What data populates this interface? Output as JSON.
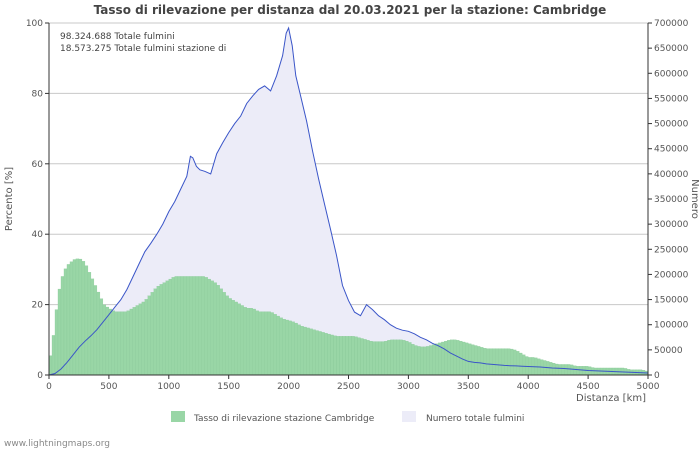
{
  "chart_data": {
    "type": "bar+area",
    "title": "Tasso di rilevazione per distanza dal 20.03.2021 per la stazione: Cambridge",
    "xlabel": "Distanza   [km]",
    "ylabel_left": "Percento   [%]",
    "ylabel_right": "Numero",
    "xlim": [
      0,
      5000
    ],
    "ylim_left": [
      0,
      100
    ],
    "ylim_right": [
      0,
      700000
    ],
    "x_ticks": [
      "0",
      "500",
      "1000",
      "1500",
      "2000",
      "2500",
      "3000",
      "3500",
      "4000",
      "4500",
      "5000"
    ],
    "y_left_ticks": [
      "0",
      "20",
      "40",
      "60",
      "80",
      "100"
    ],
    "y_right_ticks": [
      "0",
      "50000",
      "100000",
      "150000",
      "200000",
      "250000",
      "300000",
      "350000",
      "400000",
      "450000",
      "500000",
      "550000",
      "600000",
      "650000",
      "700000"
    ],
    "annotations": [
      "98.324.688 Totale fulmini",
      "18.573.275 Totale fulmini stazione di"
    ],
    "legend": [
      "Tasso di rilevazione stazione Cambridge",
      "Numero totale fulmini"
    ],
    "bin_width_km": 25,
    "series": [
      {
        "name": "Tasso di rilevazione stazione Cambridge",
        "axis": "left",
        "kind": "bar",
        "points": [
          [
            0,
            3
          ],
          [
            30,
            9
          ],
          [
            60,
            18
          ],
          [
            90,
            25
          ],
          [
            120,
            29
          ],
          [
            150,
            31
          ],
          [
            180,
            32
          ],
          [
            220,
            33
          ],
          [
            260,
            33
          ],
          [
            300,
            32
          ],
          [
            340,
            29
          ],
          [
            380,
            26
          ],
          [
            420,
            23
          ],
          [
            460,
            20
          ],
          [
            500,
            19
          ],
          [
            550,
            18
          ],
          [
            600,
            18
          ],
          [
            650,
            18
          ],
          [
            700,
            19
          ],
          [
            750,
            20
          ],
          [
            800,
            21
          ],
          [
            850,
            23
          ],
          [
            900,
            25
          ],
          [
            950,
            26
          ],
          [
            1000,
            27
          ],
          [
            1050,
            28
          ],
          [
            1100,
            28
          ],
          [
            1150,
            28
          ],
          [
            1200,
            28
          ],
          [
            1250,
            28
          ],
          [
            1300,
            28
          ],
          [
            1350,
            27
          ],
          [
            1400,
            26
          ],
          [
            1450,
            24
          ],
          [
            1500,
            22
          ],
          [
            1550,
            21
          ],
          [
            1600,
            20
          ],
          [
            1650,
            19
          ],
          [
            1700,
            19
          ],
          [
            1750,
            18
          ],
          [
            1800,
            18
          ],
          [
            1850,
            18
          ],
          [
            1900,
            17
          ],
          [
            1950,
            16
          ],
          [
            2000,
            15.5
          ],
          [
            2050,
            15
          ],
          [
            2100,
            14
          ],
          [
            2150,
            13.5
          ],
          [
            2200,
            13
          ],
          [
            2250,
            12.5
          ],
          [
            2300,
            12
          ],
          [
            2350,
            11.5
          ],
          [
            2400,
            11
          ],
          [
            2450,
            11
          ],
          [
            2500,
            11
          ],
          [
            2550,
            11
          ],
          [
            2600,
            10.5
          ],
          [
            2650,
            10
          ],
          [
            2700,
            9.5
          ],
          [
            2750,
            9.5
          ],
          [
            2800,
            9.5
          ],
          [
            2850,
            10
          ],
          [
            2900,
            10
          ],
          [
            2950,
            10
          ],
          [
            3000,
            9.5
          ],
          [
            3050,
            8.5
          ],
          [
            3100,
            8
          ],
          [
            3150,
            8
          ],
          [
            3200,
            8.5
          ],
          [
            3250,
            9
          ],
          [
            3300,
            9.5
          ],
          [
            3350,
            10
          ],
          [
            3400,
            10
          ],
          [
            3450,
            9.5
          ],
          [
            3500,
            9
          ],
          [
            3550,
            8.5
          ],
          [
            3600,
            8
          ],
          [
            3650,
            7.5
          ],
          [
            3700,
            7.5
          ],
          [
            3750,
            7.5
          ],
          [
            3800,
            7.5
          ],
          [
            3850,
            7.5
          ],
          [
            3900,
            7
          ],
          [
            3950,
            6
          ],
          [
            4000,
            5
          ],
          [
            4050,
            5
          ],
          [
            4100,
            4.5
          ],
          [
            4150,
            4
          ],
          [
            4200,
            3.5
          ],
          [
            4250,
            3
          ],
          [
            4300,
            3
          ],
          [
            4350,
            3
          ],
          [
            4400,
            2.5
          ],
          [
            4450,
            2.5
          ],
          [
            4500,
            2.5
          ],
          [
            4550,
            2
          ],
          [
            4600,
            2
          ],
          [
            4650,
            2
          ],
          [
            4700,
            2
          ],
          [
            4750,
            2
          ],
          [
            4800,
            2
          ],
          [
            4850,
            1.5
          ],
          [
            4900,
            1.5
          ],
          [
            4950,
            1.5
          ],
          [
            5000,
            1
          ]
        ]
      },
      {
        "name": "Numero totale fulmini",
        "axis": "right",
        "kind": "area",
        "points": [
          [
            0,
            0
          ],
          [
            50,
            3000
          ],
          [
            100,
            12000
          ],
          [
            150,
            25000
          ],
          [
            200,
            40000
          ],
          [
            250,
            55000
          ],
          [
            300,
            67000
          ],
          [
            350,
            78000
          ],
          [
            400,
            90000
          ],
          [
            450,
            105000
          ],
          [
            500,
            120000
          ],
          [
            550,
            135000
          ],
          [
            600,
            150000
          ],
          [
            650,
            170000
          ],
          [
            700,
            195000
          ],
          [
            750,
            220000
          ],
          [
            800,
            245000
          ],
          [
            850,
            262000
          ],
          [
            900,
            280000
          ],
          [
            950,
            300000
          ],
          [
            1000,
            325000
          ],
          [
            1050,
            345000
          ],
          [
            1100,
            370000
          ],
          [
            1150,
            395000
          ],
          [
            1180,
            435000
          ],
          [
            1200,
            432000
          ],
          [
            1230,
            415000
          ],
          [
            1260,
            408000
          ],
          [
            1300,
            405000
          ],
          [
            1350,
            400000
          ],
          [
            1400,
            440000
          ],
          [
            1450,
            462000
          ],
          [
            1500,
            482000
          ],
          [
            1550,
            500000
          ],
          [
            1600,
            515000
          ],
          [
            1650,
            540000
          ],
          [
            1700,
            555000
          ],
          [
            1750,
            568000
          ],
          [
            1800,
            575000
          ],
          [
            1850,
            565000
          ],
          [
            1900,
            595000
          ],
          [
            1950,
            635000
          ],
          [
            1980,
            680000
          ],
          [
            2000,
            690000
          ],
          [
            2030,
            655000
          ],
          [
            2060,
            595000
          ],
          [
            2100,
            555000
          ],
          [
            2150,
            505000
          ],
          [
            2200,
            445000
          ],
          [
            2250,
            390000
          ],
          [
            2300,
            340000
          ],
          [
            2350,
            290000
          ],
          [
            2400,
            238000
          ],
          [
            2450,
            178000
          ],
          [
            2500,
            148000
          ],
          [
            2550,
            125000
          ],
          [
            2600,
            118000
          ],
          [
            2650,
            140000
          ],
          [
            2700,
            130000
          ],
          [
            2750,
            118000
          ],
          [
            2800,
            110000
          ],
          [
            2850,
            100000
          ],
          [
            2900,
            93000
          ],
          [
            2950,
            89000
          ],
          [
            3000,
            87000
          ],
          [
            3050,
            82000
          ],
          [
            3100,
            75000
          ],
          [
            3150,
            70000
          ],
          [
            3200,
            63000
          ],
          [
            3250,
            58000
          ],
          [
            3300,
            52000
          ],
          [
            3350,
            44000
          ],
          [
            3400,
            38000
          ],
          [
            3450,
            32000
          ],
          [
            3500,
            27000
          ],
          [
            3550,
            25000
          ],
          [
            3600,
            24000
          ],
          [
            3650,
            22000
          ],
          [
            3700,
            21000
          ],
          [
            3750,
            20000
          ],
          [
            3800,
            19000
          ],
          [
            3850,
            18500
          ],
          [
            3900,
            18000
          ],
          [
            3950,
            17500
          ],
          [
            4000,
            17000
          ],
          [
            4050,
            16500
          ],
          [
            4100,
            16000
          ],
          [
            4150,
            15000
          ],
          [
            4200,
            14000
          ],
          [
            4250,
            13500
          ],
          [
            4300,
            13000
          ],
          [
            4350,
            12000
          ],
          [
            4400,
            11000
          ],
          [
            4450,
            10000
          ],
          [
            4500,
            9000
          ],
          [
            4550,
            8500
          ],
          [
            4600,
            8000
          ],
          [
            4650,
            7500
          ],
          [
            4700,
            7000
          ],
          [
            4750,
            6500
          ],
          [
            4800,
            6000
          ],
          [
            4850,
            5500
          ],
          [
            4900,
            5000
          ],
          [
            4950,
            4500
          ],
          [
            5000,
            4000
          ]
        ]
      }
    ]
  },
  "footer": "www.lightningmaps.org"
}
